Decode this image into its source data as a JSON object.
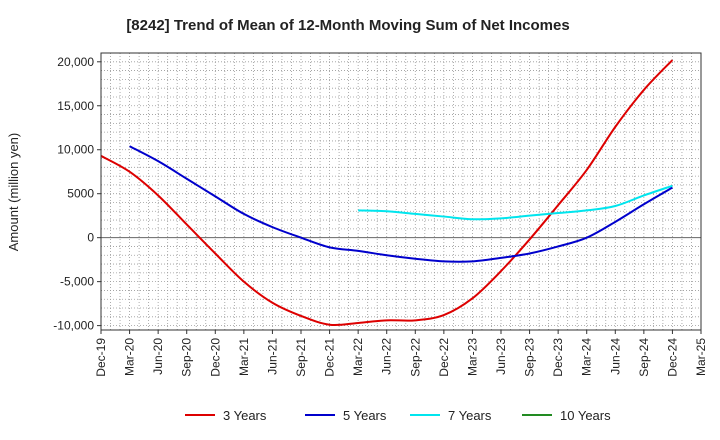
{
  "chart_data": {
    "type": "line",
    "title": "[8242]  Trend of Mean of 12-Month Moving Sum of Net Incomes",
    "xlabel": "",
    "ylabel": "Amount (million yen)",
    "ylim": [
      -10500,
      21000
    ],
    "yticks": [
      20000,
      15000,
      10000,
      5000,
      0,
      -5000,
      -10000
    ],
    "ytick_labels": [
      "20,000",
      "15,000",
      "10,000",
      "5000",
      "0",
      "-5,000",
      "-10,000"
    ],
    "x_tick_labels": [
      "Dec-19",
      "Mar-20",
      "Jun-20",
      "Sep-20",
      "Dec-20",
      "Mar-21",
      "Jun-21",
      "Sep-21",
      "Dec-21",
      "Mar-22",
      "Jun-22",
      "Sep-22",
      "Dec-22",
      "Mar-23",
      "Jun-23",
      "Sep-23",
      "Dec-23",
      "Mar-24",
      "Jun-24",
      "Sep-24",
      "Dec-24",
      "Mar-25"
    ],
    "grid": true,
    "legend_position": "bottom",
    "series": [
      {
        "name": "3 Years",
        "color": "#dd0000",
        "points": [
          [
            "Dec-19",
            9300
          ],
          [
            "Mar-20",
            7500
          ],
          [
            "Jun-20",
            4800
          ],
          [
            "Sep-20",
            1500
          ],
          [
            "Dec-20",
            -1800
          ],
          [
            "Mar-21",
            -5000
          ],
          [
            "Jun-21",
            -7400
          ],
          [
            "Sep-21",
            -8900
          ],
          [
            "Dec-21",
            -9900
          ],
          [
            "Mar-22",
            -9700
          ],
          [
            "Jun-22",
            -9400
          ],
          [
            "Sep-22",
            -9400
          ],
          [
            "Dec-22",
            -8800
          ],
          [
            "Mar-23",
            -6900
          ],
          [
            "Jun-23",
            -3800
          ],
          [
            "Sep-23",
            -200
          ],
          [
            "Dec-23",
            3700
          ],
          [
            "Mar-24",
            7700
          ],
          [
            "Jun-24",
            12600
          ],
          [
            "Sep-24",
            16800
          ],
          [
            "Dec-24",
            20200
          ]
        ]
      },
      {
        "name": "5 Years",
        "color": "#0000cc",
        "points": [
          [
            "Mar-20",
            10400
          ],
          [
            "Jun-20",
            8700
          ],
          [
            "Sep-20",
            6700
          ],
          [
            "Dec-20",
            4700
          ],
          [
            "Mar-21",
            2700
          ],
          [
            "Jun-21",
            1200
          ],
          [
            "Sep-21",
            0
          ],
          [
            "Dec-21",
            -1100
          ],
          [
            "Mar-22",
            -1500
          ],
          [
            "Jun-22",
            -2000
          ],
          [
            "Sep-22",
            -2400
          ],
          [
            "Dec-22",
            -2700
          ],
          [
            "Mar-23",
            -2700
          ],
          [
            "Jun-23",
            -2300
          ],
          [
            "Sep-23",
            -1800
          ],
          [
            "Dec-23",
            -1000
          ],
          [
            "Mar-24",
            0
          ],
          [
            "Jun-24",
            1800
          ],
          [
            "Sep-24",
            3800
          ],
          [
            "Dec-24",
            5700
          ]
        ]
      },
      {
        "name": "7 Years",
        "color": "#00e5ee",
        "points": [
          [
            "Mar-22",
            3100
          ],
          [
            "Jun-22",
            3000
          ],
          [
            "Sep-22",
            2700
          ],
          [
            "Dec-22",
            2400
          ],
          [
            "Mar-23",
            2100
          ],
          [
            "Jun-23",
            2200
          ],
          [
            "Sep-23",
            2500
          ],
          [
            "Dec-23",
            2800
          ],
          [
            "Mar-24",
            3100
          ],
          [
            "Jun-24",
            3600
          ],
          [
            "Sep-24",
            4800
          ],
          [
            "Dec-24",
            5900
          ]
        ]
      },
      {
        "name": "10 Years",
        "color": "#228b22",
        "points": []
      }
    ]
  }
}
